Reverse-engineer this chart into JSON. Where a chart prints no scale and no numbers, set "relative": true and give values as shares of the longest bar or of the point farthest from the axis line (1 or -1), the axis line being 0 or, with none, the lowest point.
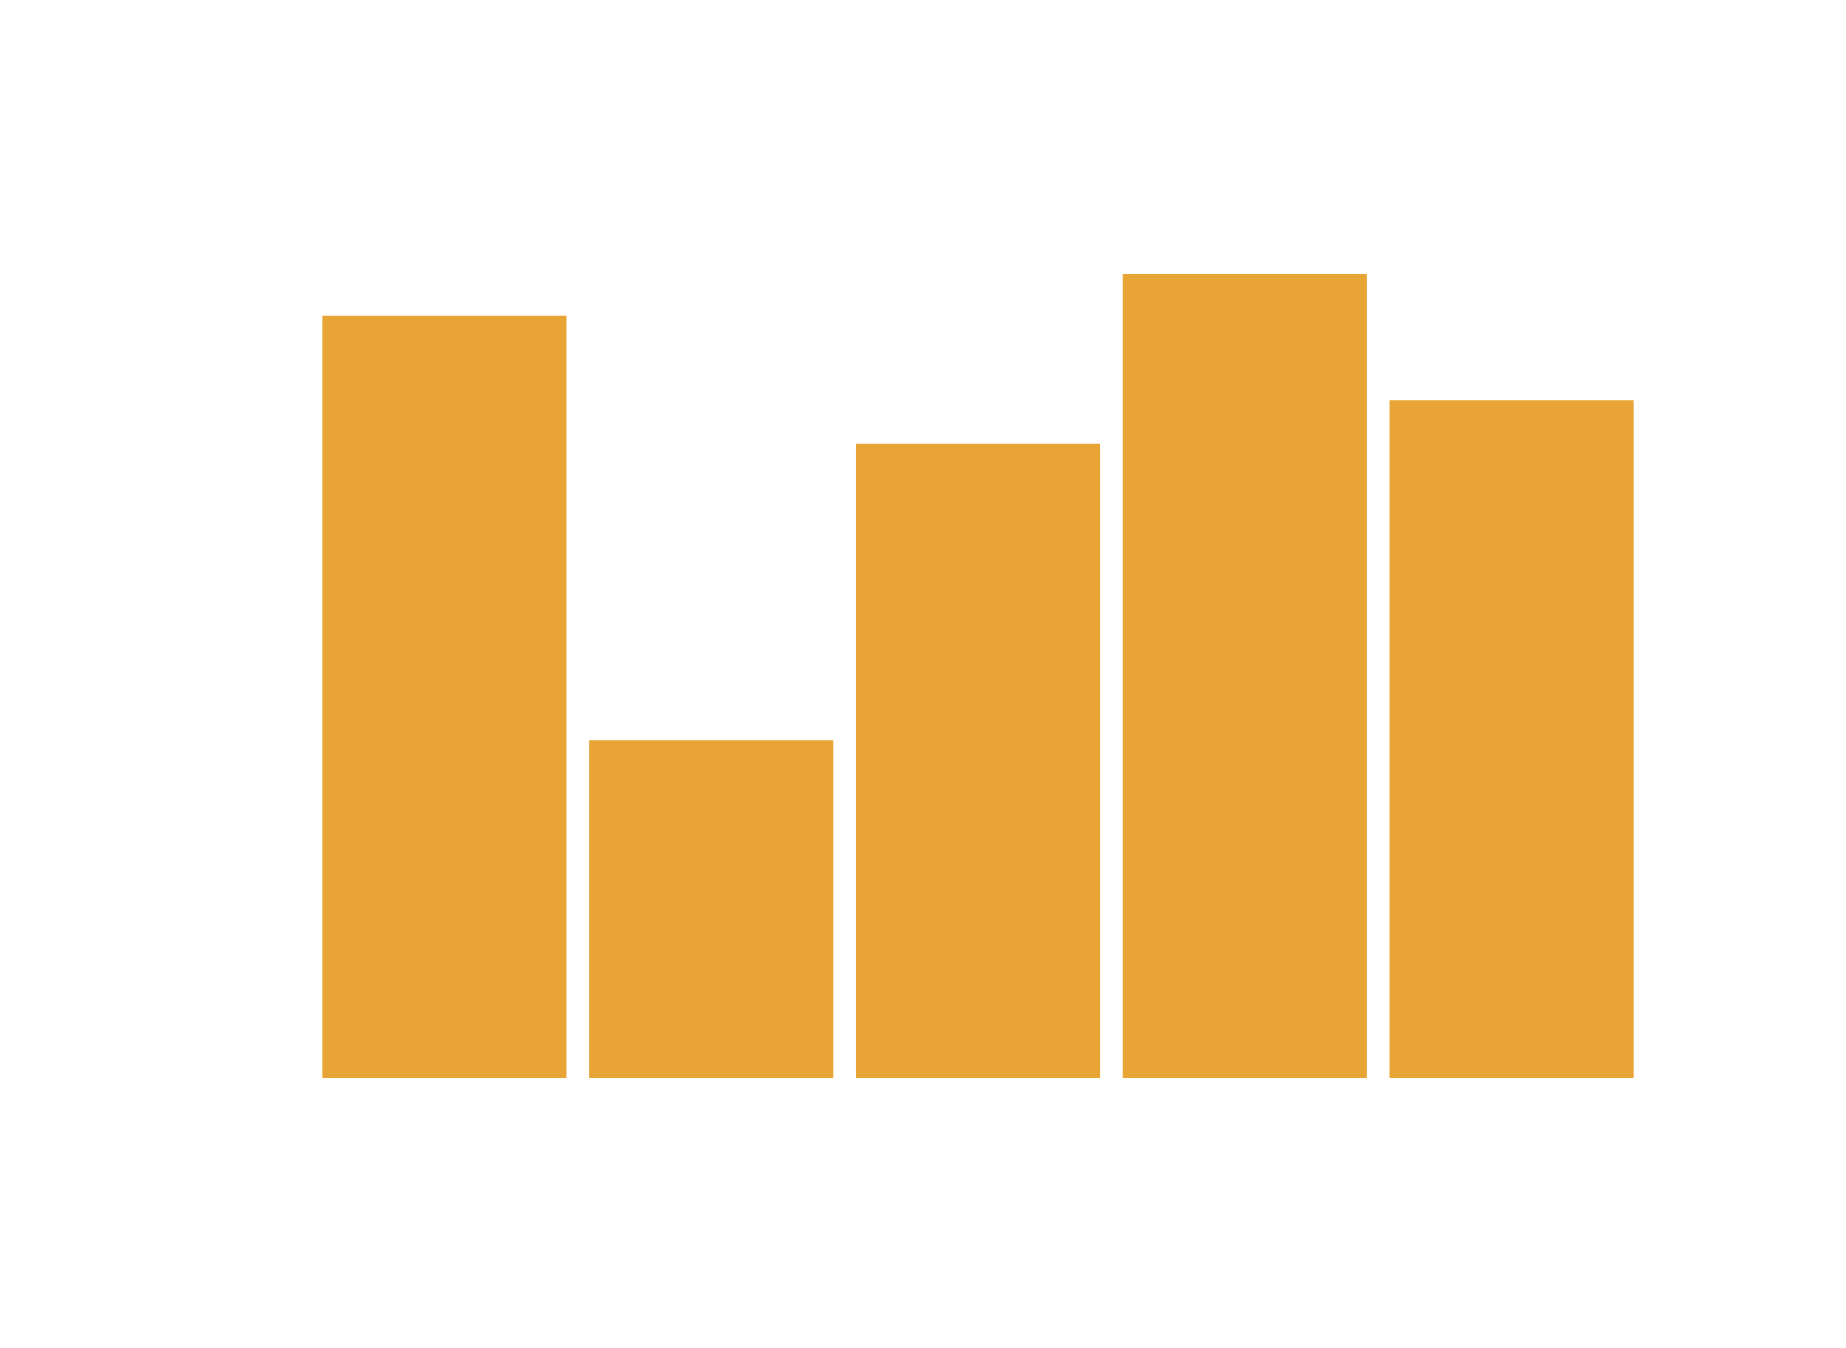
{
  "chart_data": {
    "type": "bar",
    "relative": true,
    "categories": [
      null,
      null,
      null,
      null,
      null
    ],
    "values": [
      0.948,
      0.42,
      0.789,
      1,
      0.843
    ],
    "color": "#e8a435"
  }
}
